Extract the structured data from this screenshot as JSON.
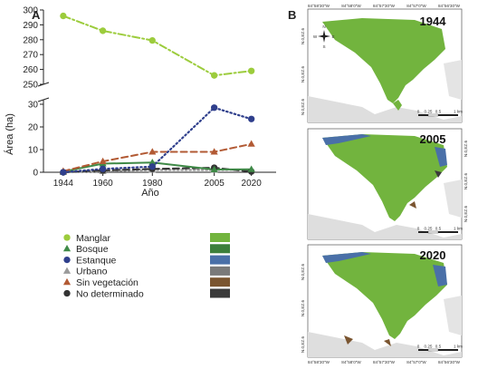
{
  "panels": {
    "a": "A",
    "b": "B"
  },
  "chart_data": {
    "type": "line",
    "x": [
      1944,
      1960,
      1980,
      2005,
      2020
    ],
    "xticks": [
      "1944",
      "1960",
      "1980",
      "2005",
      "2020"
    ],
    "xlabel": "Año",
    "ylabel": "Área (ha)",
    "y_break": true,
    "upper_ylim": [
      250,
      300
    ],
    "upper_yticks": [
      250,
      260,
      270,
      280,
      290,
      300
    ],
    "lower_ylim": [
      0,
      32
    ],
    "lower_yticks": [
      0,
      10,
      20,
      30
    ],
    "grid": false,
    "legend_position": "bottom-left",
    "series": [
      {
        "name": "Manglar",
        "values": [
          296,
          286,
          279.5,
          256,
          259
        ],
        "color": "#9ccc3c",
        "marker": "circle",
        "line": "dashdot",
        "map_swatch": "#72b43e"
      },
      {
        "name": "Bosque",
        "values": [
          0.3,
          3.8,
          4.3,
          1.2,
          1.3
        ],
        "color": "#3f8a47",
        "marker": "triangle",
        "line": "solid",
        "map_swatch": "#3c7f3b"
      },
      {
        "name": "Estanque",
        "values": [
          0,
          1.5,
          2.5,
          28.5,
          23.5
        ],
        "color": "#2f3f8c",
        "marker": "circle",
        "line": "dotted",
        "map_swatch": "#4a70a8"
      },
      {
        "name": "Urbano",
        "values": [
          0,
          0.4,
          1,
          1,
          1.2
        ],
        "color": "#9a9a9a",
        "marker": "triangle",
        "line": "dotted",
        "map_swatch": "#7a7a7a"
      },
      {
        "name": "Sin vegetación",
        "values": [
          0.5,
          4.8,
          9,
          9,
          12.5
        ],
        "color": "#b25a34",
        "marker": "triangle",
        "line": "dashed",
        "map_swatch": "#7a5530"
      },
      {
        "name": "No determinado",
        "values": [
          0,
          0.8,
          1.5,
          2,
          0.3
        ],
        "color": "#333333",
        "marker": "circle",
        "line": "dashed",
        "map_swatch": "#3a3a3a"
      }
    ]
  },
  "maps": [
    {
      "year": "1944",
      "lon_labels": [
        "84°58'30\"W",
        "84°58'0\"W",
        "84°57'30\"W",
        "84°57'0\"W",
        "84°56'30\"W"
      ],
      "lat_labels": [
        "N.0,EZ.6",
        "N.0,EZ.6",
        "N.0,EZ.6"
      ],
      "scale_labels": [
        "0",
        "0.25",
        "0.5",
        "1 km"
      ],
      "compass": [
        "N",
        "E",
        "S",
        "W"
      ]
    },
    {
      "year": "2005",
      "lat_labels": [
        "N.0,EZ.6",
        "N.0,EZ.6",
        "N.0,EZ.6"
      ],
      "scale_labels": [
        "0",
        "0.25",
        "0.5",
        "1 km"
      ]
    },
    {
      "year": "2020",
      "lon_labels": [
        "84°58'30\"W",
        "84°58'0\"W",
        "84°57'30\"W",
        "84°57'0\"W",
        "84°56'30\"W"
      ],
      "lat_labels": [
        "N.0,EZ.6",
        "N.0,EZ.6",
        "N.0,EZ.6"
      ],
      "scale_labels": [
        "0",
        "0.25",
        "0.5",
        "1 km"
      ]
    }
  ]
}
